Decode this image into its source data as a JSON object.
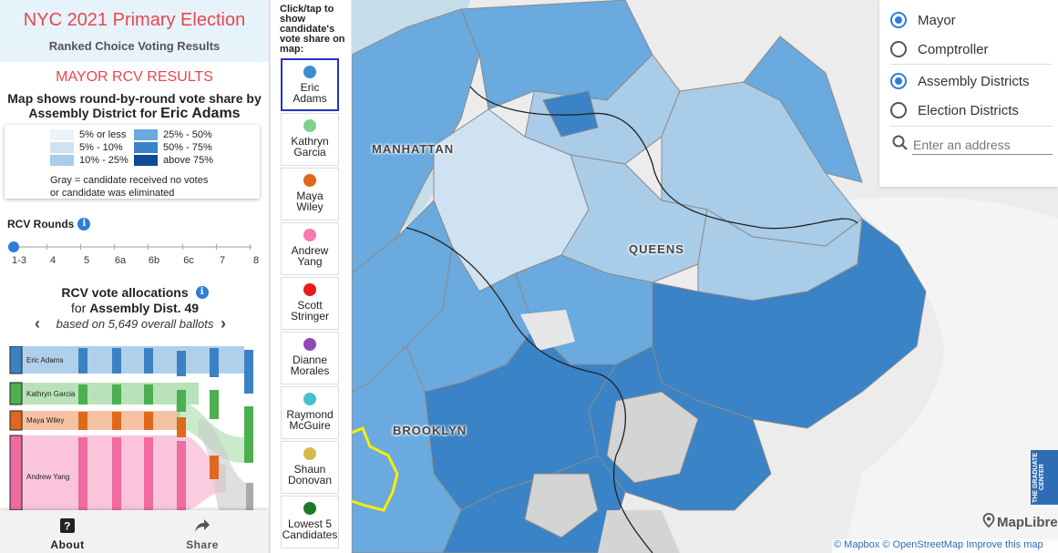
{
  "header": {
    "title": "NYC 2021 Primary Election",
    "subtitle": "Ranked Choice Voting Results"
  },
  "section_title": "MAYOR RCV RESULTS",
  "map_desc": {
    "line1": "Map shows round-by-round vote share by",
    "line2_prefix": "Assembly District for",
    "candidate": "Eric Adams"
  },
  "legend": {
    "items": [
      {
        "label": "5% or less",
        "color": "#eef3fb"
      },
      {
        "label": "5% - 10%",
        "color": "#cfe2f2"
      },
      {
        "label": "10% - 25%",
        "color": "#a9cce8"
      },
      {
        "label": "25% - 50%",
        "color": "#6aaade"
      },
      {
        "label": "50% - 75%",
        "color": "#3a83c6"
      },
      {
        "label": "above 75%",
        "color": "#0f4a96"
      }
    ],
    "note_line1": "Gray = candidate received no votes",
    "note_line2": "or candidate was eliminated"
  },
  "rounds": {
    "label": "RCV Rounds",
    "ticks": [
      "1-3",
      "4",
      "5",
      "6a",
      "6b",
      "6c",
      "7",
      "8"
    ],
    "selected": "1-3"
  },
  "allocations": {
    "title": "RCV vote allocations",
    "for_prefix": "for",
    "district": "Assembly Dist. 49",
    "ballots": "based on 5,649 overall ballots",
    "prev_icon": "chevron-left-icon",
    "next_icon": "chevron-right-icon"
  },
  "sankey": {
    "candidates": [
      {
        "name": "Eric Adams",
        "color": "#3b82c4",
        "light": "#9cc3e6"
      },
      {
        "name": "Kathryn Garcia",
        "color": "#4caf50",
        "light": "#a8dba8"
      },
      {
        "name": "Maya Wiley",
        "color": "#e0681c",
        "light": "#f2b48c"
      },
      {
        "name": "Andrew Yang",
        "color": "#f06ba2",
        "light": "#f9b6d1"
      }
    ]
  },
  "bottom": {
    "about": "About",
    "share": "Share"
  },
  "candidate_panel": {
    "instruction": "Click/tap to show candidate's vote share on map:",
    "selected": "Eric Adams",
    "candidates": [
      {
        "line1": "Eric",
        "line2": "Adams",
        "color": "#3b8fd0"
      },
      {
        "line1": "Kathryn",
        "line2": "Garcia",
        "color": "#7fd28b"
      },
      {
        "line1": "Maya",
        "line2": "Wiley",
        "color": "#e0681c"
      },
      {
        "line1": "Andrew",
        "line2": "Yang",
        "color": "#f47ab0"
      },
      {
        "line1": "Scott",
        "line2": "Stringer",
        "color": "#e81c1c"
      },
      {
        "line1": "Dianne",
        "line2": "Morales",
        "color": "#8d4bb5"
      },
      {
        "line1": "Raymond",
        "line2": "McGuire",
        "color": "#4bbfc9"
      },
      {
        "line1": "Shaun",
        "line2": "Donovan",
        "color": "#d7b84b"
      },
      {
        "line1": "Lowest 5",
        "line2": "Candidates",
        "color": "#1a7a2a"
      }
    ]
  },
  "map": {
    "labels": {
      "manhattan": "MANHATTAN",
      "queens": "QUEENS",
      "brooklyn": "BROOKLYN"
    },
    "brand": "MapLibre",
    "logo_text": "THE GRADUATE CENTER CITY UNIVERSITY OF NEW YORK",
    "attribution": "© Mapbox © OpenStreetMap Improve this map"
  },
  "controls": {
    "offices": [
      {
        "label": "Mayor",
        "checked": true
      },
      {
        "label": "Comptroller",
        "checked": false
      }
    ],
    "district_types": [
      {
        "label": "Assembly Districts",
        "checked": true
      },
      {
        "label": "Election Districts",
        "checked": false
      }
    ],
    "address_placeholder": "Enter an address"
  }
}
